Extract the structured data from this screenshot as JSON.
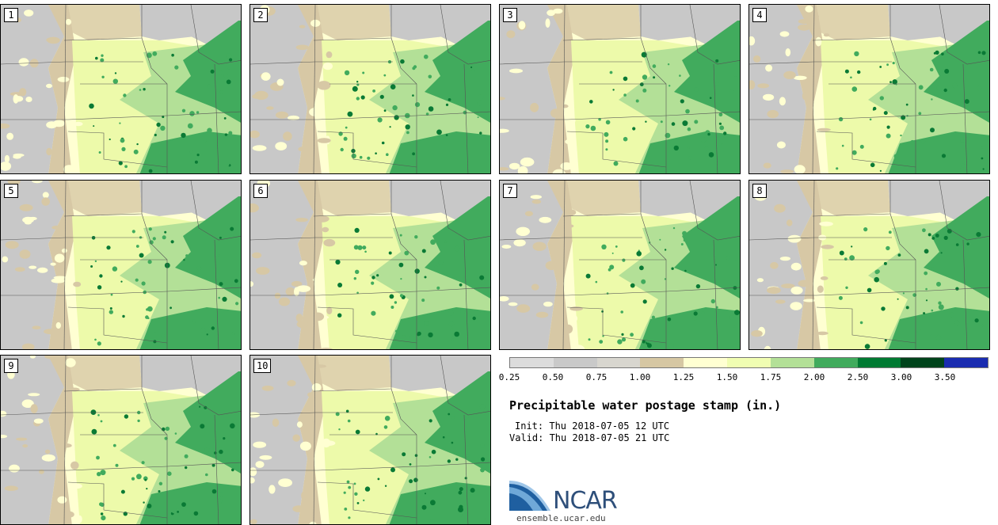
{
  "panels": [
    {
      "label": "1"
    },
    {
      "label": "2"
    },
    {
      "label": "3"
    },
    {
      "label": "4"
    },
    {
      "label": "5"
    },
    {
      "label": "6"
    },
    {
      "label": "7"
    },
    {
      "label": "8"
    },
    {
      "label": "9"
    },
    {
      "label": "10"
    }
  ],
  "legend": {
    "colors": [
      "#dcdcdc",
      "#c9c9c9",
      "#d8d6cf",
      "#d6c7a3",
      "#ffffd2",
      "#f0fdb2",
      "#b3e097",
      "#41ab5d",
      "#007a32",
      "#00441b",
      "#1a2cb0"
    ],
    "tick_labels": [
      "0.25",
      "0.50",
      "0.75",
      "1.00",
      "1.25",
      "1.50",
      "1.75",
      "2.00",
      "2.50",
      "3.00",
      "3.50"
    ]
  },
  "title": "Precipitable water postage stamp (in.)",
  "init_text": "Init: Thu 2018-07-05 12 UTC",
  "valid_text": "Valid: Thu 2018-07-05 21 UTC",
  "logo": {
    "wordmark": "NCAR",
    "site": "ensemble.ucar.edu"
  },
  "map_colors": {
    "gray": "#c8c8c8",
    "tan": "#d7c8a5",
    "cream": "#ffffd2",
    "lime": "#edfaaa",
    "light_green": "#b3e097",
    "green": "#41ab5d",
    "dark_green": "#0a7a35"
  }
}
